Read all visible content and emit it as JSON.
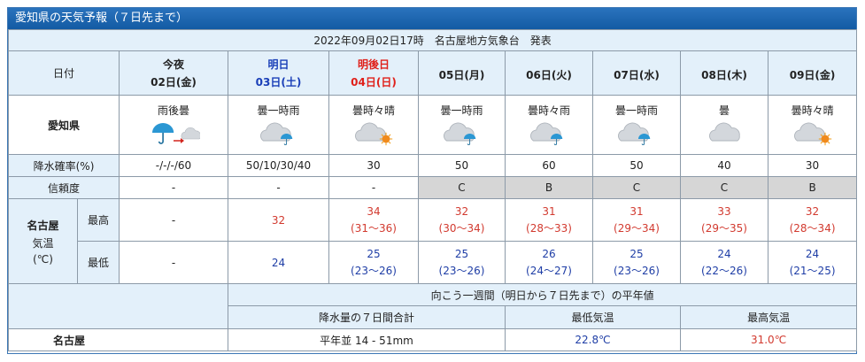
{
  "header": {
    "title": "愛知県の天気予報（７日先まで）",
    "issued": "2022年09月02日17時　名古屋地方気象台　発表"
  },
  "table": {
    "date_label": "日付",
    "days": [
      {
        "name": "今夜",
        "date": "02日(金)"
      },
      {
        "name": "明日",
        "date": "03日(土)"
      },
      {
        "name": "明後日",
        "date": "04日(日)"
      },
      {
        "date": "05日(月)"
      },
      {
        "date": "06日(火)"
      },
      {
        "date": "07日(水)"
      },
      {
        "date": "08日(木)"
      },
      {
        "date": "09日(金)"
      }
    ],
    "region": "愛知県",
    "weather": [
      "雨後曇",
      "曇一時雨",
      "曇時々晴",
      "曇一時雨",
      "曇時々雨",
      "曇一時雨",
      "曇",
      "曇時々晴"
    ],
    "pop_label": "降水確率(%)",
    "pop": [
      "-/-/-/60",
      "50/10/30/40",
      "30",
      "50",
      "60",
      "50",
      "40",
      "30"
    ],
    "reliability_label": "信頼度",
    "reliability": [
      "-",
      "-",
      "-",
      "C",
      "B",
      "C",
      "C",
      "B"
    ],
    "city": "名古屋",
    "temp_label": "気温",
    "temp_unit": "(℃)",
    "high_label": "最高",
    "high": [
      {
        "value": "-"
      },
      {
        "value": 32
      },
      {
        "value": 34,
        "range": "(31～36)"
      },
      {
        "value": 32,
        "range": "(30～34)"
      },
      {
        "value": 31,
        "range": "(28～33)"
      },
      {
        "value": 31,
        "range": "(29～34)"
      },
      {
        "value": 33,
        "range": "(29～35)"
      },
      {
        "value": 32,
        "range": "(28～34)"
      }
    ],
    "low_label": "最低",
    "low": [
      {
        "value": "-"
      },
      {
        "value": 24
      },
      {
        "value": 25,
        "range": "(23～26)"
      },
      {
        "value": 25,
        "range": "(23～26)"
      },
      {
        "value": 26,
        "range": "(24～27)"
      },
      {
        "value": 25,
        "range": "(23～26)"
      },
      {
        "value": 24,
        "range": "(22～26)"
      },
      {
        "value": 24,
        "range": "(21～25)"
      }
    ]
  },
  "normals": {
    "title": "向こう一週間（明日から７日先まで）の平年値",
    "columns": [
      "降水量の７日間合計",
      "最低気温",
      "最高気温"
    ],
    "city": "名古屋",
    "values": [
      "平年並 14 - 51mm",
      "22.8℃",
      "31.0℃"
    ]
  }
}
